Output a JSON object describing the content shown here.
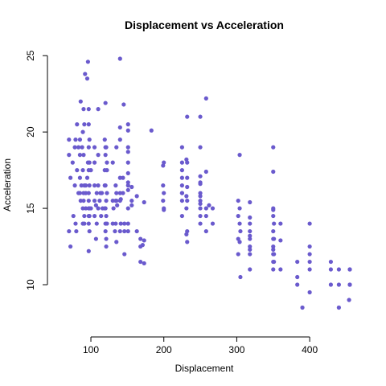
{
  "chart_data": {
    "type": "scatter",
    "title": "Displacement vs Acceleration",
    "xlabel": "Displacement",
    "ylabel": "Acceleration",
    "xlim": [
      68,
      455
    ],
    "ylim": [
      8,
      24.8
    ],
    "xticks": [
      100,
      200,
      300,
      400
    ],
    "yticks": [
      10,
      15,
      20,
      25
    ],
    "xtick_labels": [
      "100",
      "200",
      "300",
      "400"
    ],
    "ytick_labels": [
      "10",
      "15",
      "20",
      "25"
    ],
    "grid": false,
    "point_color": "#6a5acd",
    "points": [
      [
        70,
        19.5
      ],
      [
        70,
        18.5
      ],
      [
        70,
        13.5
      ],
      [
        72,
        12.5
      ],
      [
        72,
        17.0
      ],
      [
        75,
        18.0
      ],
      [
        76,
        14.5
      ],
      [
        78,
        19.0
      ],
      [
        78,
        16.5
      ],
      [
        79,
        19.5
      ],
      [
        79,
        14.0
      ],
      [
        80,
        13.5
      ],
      [
        81,
        17.5
      ],
      [
        81,
        20.5
      ],
      [
        83,
        16.0
      ],
      [
        83,
        19.0
      ],
      [
        85,
        18.5
      ],
      [
        85,
        17.0
      ],
      [
        85,
        16.0
      ],
      [
        85,
        19.5
      ],
      [
        86,
        15.5
      ],
      [
        86,
        22.0
      ],
      [
        87,
        16.5
      ],
      [
        88,
        19.0
      ],
      [
        89,
        15.0
      ],
      [
        89,
        14.0
      ],
      [
        89,
        17.5
      ],
      [
        89,
        20.0
      ],
      [
        90,
        21.5
      ],
      [
        90,
        18.5
      ],
      [
        90,
        16.0
      ],
      [
        90,
        15.5
      ],
      [
        91,
        14.5
      ],
      [
        91,
        16.5
      ],
      [
        91,
        20.5
      ],
      [
        91,
        14.0
      ],
      [
        92,
        23.8
      ],
      [
        93,
        15.0
      ],
      [
        93,
        16.5
      ],
      [
        93,
        16.0
      ],
      [
        95,
        17.0
      ],
      [
        95,
        23.5
      ],
      [
        96,
        18.0
      ],
      [
        96,
        24.6
      ],
      [
        97,
        14.5
      ],
      [
        97,
        19.0
      ],
      [
        97,
        16.0
      ],
      [
        97,
        20.5
      ],
      [
        97,
        15.5
      ],
      [
        97,
        17.5
      ],
      [
        97,
        15.0
      ],
      [
        97,
        14.0
      ],
      [
        97,
        21.5
      ],
      [
        97,
        12.2
      ],
      [
        98,
        13.5
      ],
      [
        98,
        16.5
      ],
      [
        98,
        19.5
      ],
      [
        98,
        15.0
      ],
      [
        98,
        18.0
      ],
      [
        98,
        14.5
      ],
      [
        100,
        17.5
      ],
      [
        100,
        15.0
      ],
      [
        105,
        18.0
      ],
      [
        105,
        14.5
      ],
      [
        105,
        19.0
      ],
      [
        105,
        15.5
      ],
      [
        105,
        16.5
      ],
      [
        107,
        15.2
      ],
      [
        107,
        13.0
      ],
      [
        108,
        16.0
      ],
      [
        108,
        14.0
      ],
      [
        110,
        16.5
      ],
      [
        110,
        18.5
      ],
      [
        110,
        21.5
      ],
      [
        110,
        15.0
      ],
      [
        112,
        15.5
      ],
      [
        113,
        16.0
      ],
      [
        114,
        14.5
      ],
      [
        115,
        16.0
      ],
      [
        116,
        15.0
      ],
      [
        119,
        19.5
      ],
      [
        119,
        17.5
      ],
      [
        119,
        15.0
      ],
      [
        119,
        16.5
      ],
      [
        120,
        15.0
      ],
      [
        120,
        13.5
      ],
      [
        120,
        14.0
      ],
      [
        120,
        16.5
      ],
      [
        120,
        18.5
      ],
      [
        120,
        19.0
      ],
      [
        120,
        21.9
      ],
      [
        121,
        15.5
      ],
      [
        121,
        13.0
      ],
      [
        121,
        14.5
      ],
      [
        121,
        19.0
      ],
      [
        121,
        12.5
      ],
      [
        122,
        16.0
      ],
      [
        122,
        17.5
      ],
      [
        122,
        14.0
      ],
      [
        122,
        18.0
      ],
      [
        130,
        15.5
      ],
      [
        130,
        18.0
      ],
      [
        130,
        14.0
      ],
      [
        131,
        15.0
      ],
      [
        133,
        13.5
      ],
      [
        134,
        15.5
      ],
      [
        134,
        16.5
      ],
      [
        134,
        14.0
      ],
      [
        135,
        15.5
      ],
      [
        135,
        16.0
      ],
      [
        135,
        12.8
      ],
      [
        135,
        19.0
      ],
      [
        136,
        15.2
      ],
      [
        140,
        16.0
      ],
      [
        140,
        19.5
      ],
      [
        140,
        17.0
      ],
      [
        140,
        13.5
      ],
      [
        140,
        15.5
      ],
      [
        140,
        24.8
      ],
      [
        140,
        20.3
      ],
      [
        141,
        15.6
      ],
      [
        141,
        14.0
      ],
      [
        144,
        16.0
      ],
      [
        144,
        17.0
      ],
      [
        145,
        21.8
      ],
      [
        146,
        12.0
      ],
      [
        146,
        14.0
      ],
      [
        146,
        13.5
      ],
      [
        151,
        20.1
      ],
      [
        151,
        18.0
      ],
      [
        151,
        16.2
      ],
      [
        151,
        14.0
      ],
      [
        151,
        13.5
      ],
      [
        151,
        15.0
      ],
      [
        151,
        18.7
      ],
      [
        151,
        17.3
      ],
      [
        151,
        16.7
      ],
      [
        151,
        20.5
      ],
      [
        151,
        19.0
      ],
      [
        151,
        16.5
      ],
      [
        156,
        16.4
      ],
      [
        156,
        15.5
      ],
      [
        156,
        15.2
      ],
      [
        163,
        15.8
      ],
      [
        163,
        13.5
      ],
      [
        168,
        13.0
      ],
      [
        168,
        12.5
      ],
      [
        168,
        11.5
      ],
      [
        171,
        12.6
      ],
      [
        173,
        15.4
      ],
      [
        173,
        11.4
      ],
      [
        173,
        12.9
      ],
      [
        183,
        20.1
      ],
      [
        199,
        17.8
      ],
      [
        199,
        16.5
      ],
      [
        199,
        15.5
      ],
      [
        200,
        15.0
      ],
      [
        200,
        16.0
      ],
      [
        200,
        18.0
      ],
      [
        200,
        14.9
      ],
      [
        225,
        16.0
      ],
      [
        225,
        17.0
      ],
      [
        225,
        19.0
      ],
      [
        225,
        14.5
      ],
      [
        225,
        18.0
      ],
      [
        225,
        15.5
      ],
      [
        225,
        16.5
      ],
      [
        225,
        16.0
      ],
      [
        225,
        17.5
      ],
      [
        231,
        18.2
      ],
      [
        231,
        15.8
      ],
      [
        231,
        13.3
      ],
      [
        231,
        15.0
      ],
      [
        232,
        21.0
      ],
      [
        232,
        16.4
      ],
      [
        232,
        15.5
      ],
      [
        232,
        17.0
      ],
      [
        232,
        12.8
      ],
      [
        232,
        13.5
      ],
      [
        232,
        18.0
      ],
      [
        250,
        19.0
      ],
      [
        250,
        16.0
      ],
      [
        250,
        15.5
      ],
      [
        250,
        17.1
      ],
      [
        250,
        21.0
      ],
      [
        250,
        15.3
      ],
      [
        250,
        16.7
      ],
      [
        250,
        14.0
      ],
      [
        250,
        15.0
      ],
      [
        250,
        16.6
      ],
      [
        250,
        15.8
      ],
      [
        250,
        14.5
      ],
      [
        258,
        17.4
      ],
      [
        258,
        14.5
      ],
      [
        258,
        13.5
      ],
      [
        258,
        15.0
      ],
      [
        258,
        22.2
      ],
      [
        262,
        15.2
      ],
      [
        267,
        15.0
      ],
      [
        267,
        14.0
      ],
      [
        302,
        12.0
      ],
      [
        302,
        14.5
      ],
      [
        302,
        15.5
      ],
      [
        302,
        13.0
      ],
      [
        304,
        15.0
      ],
      [
        304,
        18.5
      ],
      [
        304,
        12.8
      ],
      [
        304,
        14.0
      ],
      [
        305,
        13.5
      ],
      [
        305,
        10.5
      ],
      [
        318,
        13.0
      ],
      [
        318,
        11.0
      ],
      [
        318,
        14.4
      ],
      [
        318,
        13.5
      ],
      [
        318,
        12.0
      ],
      [
        318,
        15.4
      ],
      [
        318,
        13.2
      ],
      [
        318,
        14.0
      ],
      [
        318,
        12.5
      ],
      [
        318,
        12.3
      ],
      [
        350,
        11.0
      ],
      [
        350,
        13.5
      ],
      [
        350,
        12.0
      ],
      [
        350,
        12.5
      ],
      [
        350,
        11.5
      ],
      [
        350,
        17.4
      ],
      [
        350,
        13.0
      ],
      [
        350,
        14.5
      ],
      [
        350,
        15.0
      ],
      [
        350,
        14.9
      ],
      [
        350,
        19.0
      ],
      [
        350,
        12.3
      ],
      [
        351,
        12.0
      ],
      [
        351,
        14.0
      ],
      [
        351,
        13.0
      ],
      [
        351,
        11.5
      ],
      [
        360,
        14.0
      ],
      [
        360,
        12.9
      ],
      [
        360,
        11.0
      ],
      [
        383,
        11.5
      ],
      [
        383,
        10.5
      ],
      [
        383,
        10.0
      ],
      [
        390,
        8.5
      ],
      [
        400,
        11.0
      ],
      [
        400,
        12.0
      ],
      [
        400,
        12.5
      ],
      [
        400,
        11.5
      ],
      [
        400,
        14.0
      ],
      [
        400,
        9.5
      ],
      [
        429,
        10.0
      ],
      [
        429,
        11.5
      ],
      [
        429,
        11.0
      ],
      [
        440,
        8.5
      ],
      [
        440,
        10.0
      ],
      [
        440,
        11.0
      ],
      [
        454,
        9.0
      ],
      [
        455,
        10.0
      ],
      [
        455,
        11.0
      ],
      [
        455,
        10.0
      ],
      [
        455,
        11.0
      ]
    ]
  }
}
